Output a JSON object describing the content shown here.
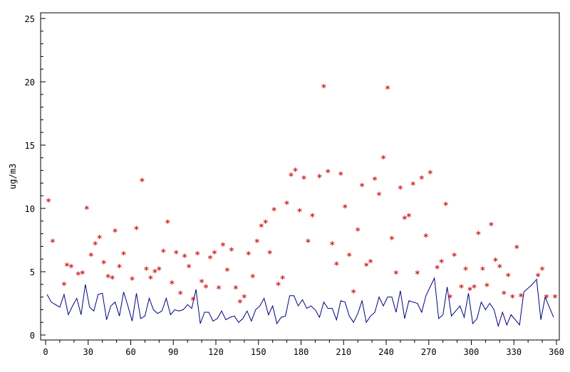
{
  "chart_data": {
    "type": "scatter",
    "title": "",
    "xlabel": "",
    "ylabel": "ug/m3",
    "xlim": [
      0,
      360
    ],
    "ylim": [
      0,
      25
    ],
    "x_ticks": [
      "0",
      "30",
      "60",
      "90",
      "120",
      "150",
      "180",
      "210",
      "240",
      "270",
      "300",
      "330",
      "360"
    ],
    "y_ticks": [
      "0",
      "5",
      "10",
      "15",
      "20",
      "25"
    ],
    "grid": false,
    "legend": "none",
    "colors": {
      "points": "#cc2222",
      "line": "#000080",
      "axis": "#000000"
    },
    "series": [
      {
        "kind": "points",
        "marker": "*",
        "x": [
          2,
          5,
          13,
          15,
          18,
          23,
          26,
          29,
          32,
          35,
          38,
          41,
          44,
          47,
          49,
          52,
          55,
          61,
          64,
          68,
          71,
          74,
          77,
          80,
          83,
          86,
          89,
          92,
          95,
          98,
          101,
          104,
          107,
          110,
          113,
          116,
          119,
          122,
          125,
          128,
          131,
          134,
          137,
          140,
          143,
          146,
          149,
          152,
          155,
          158,
          161,
          164,
          167,
          170,
          173,
          176,
          179,
          182,
          185,
          188,
          193,
          196,
          199,
          202,
          205,
          208,
          211,
          214,
          217,
          220,
          223,
          226,
          229,
          232,
          235,
          238,
          241,
          244,
          247,
          250,
          253,
          256,
          259,
          262,
          265,
          268,
          271,
          276,
          279,
          282,
          285,
          288,
          293,
          296,
          299,
          302,
          305,
          308,
          311,
          314,
          317,
          320,
          323,
          326,
          329,
          332,
          335,
          347,
          350,
          353,
          359
        ],
        "y": [
          10.6,
          7.4,
          4.0,
          5.5,
          5.4,
          4.8,
          4.9,
          10.0,
          6.3,
          7.2,
          7.7,
          5.7,
          4.6,
          4.5,
          8.2,
          5.4,
          6.4,
          4.4,
          8.4,
          12.2,
          5.2,
          4.5,
          5.0,
          5.2,
          6.6,
          8.9,
          4.1,
          6.5,
          3.3,
          6.2,
          5.4,
          2.8,
          6.4,
          4.2,
          3.8,
          6.1,
          6.5,
          3.7,
          7.1,
          5.1,
          6.7,
          3.7,
          2.6,
          3.0,
          6.4,
          4.6,
          7.4,
          8.6,
          8.9,
          6.5,
          9.9,
          4.0,
          4.5,
          10.4,
          12.6,
          13.0,
          9.8,
          12.4,
          7.4,
          9.4,
          12.5,
          19.6,
          12.9,
          7.2,
          5.6,
          12.7,
          10.1,
          6.3,
          3.4,
          8.3,
          11.8,
          5.5,
          5.8,
          12.3,
          11.1,
          14.0,
          19.5,
          7.6,
          4.9,
          11.6,
          9.2,
          9.4,
          11.9,
          4.9,
          12.4,
          7.8,
          12.8,
          5.3,
          5.8,
          10.3,
          3.0,
          6.3,
          3.8,
          5.2,
          3.6,
          3.8,
          8.0,
          5.2,
          3.9,
          8.7,
          5.9,
          5.4,
          3.3,
          4.7,
          3.0,
          6.9,
          3.1,
          4.7,
          5.2,
          3.0,
          3.0
        ]
      },
      {
        "kind": "line",
        "x": [
          1,
          4,
          7,
          10,
          13,
          16,
          19,
          22,
          25,
          28,
          31,
          34,
          37,
          40,
          43,
          46,
          49,
          52,
          55,
          58,
          61,
          64,
          67,
          70,
          73,
          76,
          79,
          82,
          85,
          88,
          91,
          94,
          97,
          100,
          103,
          106,
          109,
          112,
          115,
          118,
          121,
          124,
          127,
          130,
          133,
          136,
          139,
          142,
          145,
          148,
          151,
          154,
          157,
          160,
          163,
          166,
          169,
          172,
          175,
          178,
          181,
          184,
          187,
          190,
          193,
          196,
          199,
          202,
          205,
          208,
          211,
          214,
          217,
          220,
          223,
          226,
          229,
          232,
          235,
          238,
          241,
          244,
          247,
          250,
          253,
          256,
          259,
          262,
          265,
          268,
          271,
          274,
          277,
          280,
          283,
          286,
          289,
          292,
          295,
          298,
          301,
          304,
          307,
          310,
          313,
          316,
          319,
          322,
          325,
          328,
          331,
          334,
          337,
          340,
          343,
          346,
          349,
          352,
          355,
          358
        ],
        "y": [
          3.2,
          2.6,
          2.4,
          2.2,
          3.2,
          1.6,
          2.3,
          2.9,
          1.6,
          4.0,
          2.2,
          1.9,
          3.2,
          3.3,
          1.2,
          2.3,
          2.6,
          1.5,
          3.4,
          2.3,
          1.1,
          3.3,
          1.3,
          1.5,
          2.9,
          2.0,
          1.7,
          1.9,
          2.9,
          1.6,
          2.0,
          1.9,
          2.0,
          2.4,
          2.1,
          3.6,
          0.9,
          1.8,
          1.8,
          1.1,
          1.3,
          1.9,
          1.2,
          1.4,
          1.5,
          1.0,
          1.3,
          1.9,
          1.1,
          2.0,
          2.3,
          2.9,
          1.6,
          2.3,
          0.9,
          1.4,
          1.5,
          3.1,
          3.1,
          2.3,
          2.8,
          2.1,
          2.3,
          2.0,
          1.4,
          2.6,
          2.1,
          2.1,
          1.2,
          2.7,
          2.6,
          1.5,
          1.0,
          1.7,
          2.7,
          1.0,
          1.5,
          1.8,
          3.0,
          2.3,
          3.0,
          3.0,
          1.8,
          3.5,
          1.3,
          2.7,
          2.6,
          2.5,
          1.8,
          3.1,
          3.8,
          4.5,
          1.3,
          1.6,
          3.8,
          1.5,
          1.9,
          2.3,
          1.4,
          3.3,
          0.9,
          1.3,
          2.6,
          2.0,
          2.5,
          2.0,
          0.7,
          1.8,
          0.8,
          1.6,
          1.2,
          0.8,
          3.4,
          3.7,
          4.0,
          4.4,
          1.2,
          3.0,
          2.2,
          1.4
        ]
      }
    ]
  }
}
